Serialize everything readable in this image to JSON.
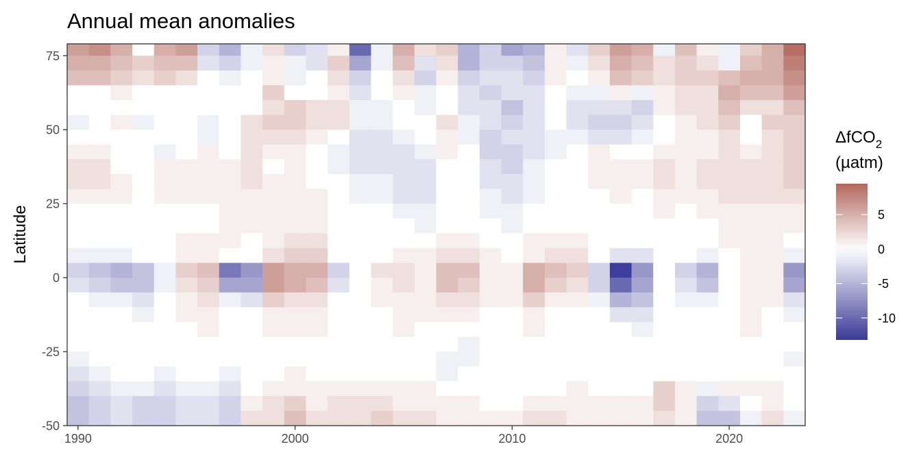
{
  "chart_data": {
    "type": "heatmap",
    "title": "Annual mean anomalies",
    "xlabel": "",
    "ylabel": "Latitude",
    "x_ticks": [
      1990,
      2000,
      2010,
      2020
    ],
    "y_ticks": [
      75,
      50,
      25,
      0,
      -25,
      -50
    ],
    "y_tick_labels": [
      "75",
      "50",
      "25",
      "0",
      "-25",
      "-50"
    ],
    "xlim": [
      1989.5,
      2023.5
    ],
    "ylim": [
      -50,
      79
    ],
    "years": [
      1990,
      1991,
      1992,
      1993,
      1994,
      1995,
      1996,
      1997,
      1998,
      1999,
      2000,
      2001,
      2002,
      2003,
      2004,
      2005,
      2006,
      2007,
      2008,
      2009,
      2010,
      2011,
      2012,
      2013,
      2014,
      2015,
      2016,
      2017,
      2018,
      2019,
      2020,
      2021,
      2022,
      2023
    ],
    "lat_bands": [
      77.5,
      72.5,
      67.5,
      62.5,
      57.5,
      52.5,
      47.5,
      42.5,
      37.5,
      32.5,
      27.5,
      22.5,
      17.5,
      12.5,
      7.5,
      2.5,
      -2.5,
      -7.5,
      -12.5,
      -17.5,
      -22.5,
      -27.5,
      -32.5,
      -37.5,
      -42.5,
      -47.5
    ],
    "values": [
      [
        6,
        7,
        5,
        0,
        5,
        6,
        -3,
        -5,
        -1,
        2,
        -3,
        -2,
        1,
        -10,
        -1,
        5,
        2,
        3,
        -5,
        -3,
        -6,
        -5,
        1,
        -2,
        3,
        6,
        5,
        -1,
        4,
        1,
        -1,
        3,
        5,
        9
      ],
      [
        5,
        5,
        4,
        3,
        4,
        4,
        -2,
        -3,
        -1,
        1,
        -1,
        -2,
        3,
        -6,
        -1,
        4,
        -2,
        2,
        -5,
        -3,
        -3,
        -4,
        1,
        -1,
        2,
        5,
        4,
        2,
        3,
        2,
        -1,
        4,
        5,
        8
      ],
      [
        4,
        4,
        3,
        2,
        3,
        2,
        0,
        -1,
        0,
        1,
        -1,
        0,
        2,
        -3,
        0,
        2,
        -3,
        1,
        -3,
        -2,
        -2,
        -3,
        1,
        0,
        1,
        4,
        3,
        2,
        3,
        3,
        4,
        5,
        5,
        7
      ],
      [
        0,
        0,
        1,
        0,
        0,
        0,
        0,
        0,
        0,
        3,
        0,
        0,
        1,
        -2,
        0,
        1,
        -1,
        0,
        -2,
        -3,
        -2,
        -2,
        0,
        -1,
        -1,
        1,
        -1,
        1,
        2,
        2,
        5,
        4,
        4,
        6
      ],
      [
        0,
        0,
        0,
        0,
        0,
        0,
        0,
        0,
        0,
        2,
        3,
        2,
        2,
        -1,
        -1,
        0,
        -1,
        0,
        -2,
        -2,
        -4,
        -2,
        0,
        -2,
        -2,
        -2,
        -3,
        1,
        2,
        2,
        4,
        2,
        2,
        4
      ],
      [
        -1,
        0,
        1,
        -1,
        0,
        0,
        -1,
        0,
        2,
        3,
        3,
        2,
        2,
        -1,
        -1,
        0,
        0,
        2,
        -1,
        -2,
        -3,
        -2,
        0,
        -2,
        -3,
        -3,
        -2,
        0,
        1,
        2,
        3,
        0,
        3,
        3
      ],
      [
        0,
        0,
        0,
        0,
        0,
        0,
        -1,
        0,
        2,
        2,
        2,
        1,
        0,
        -2,
        -2,
        -1,
        0,
        1,
        -1,
        -3,
        -2,
        -2,
        -1,
        -1,
        -2,
        -2,
        -1,
        0,
        1,
        1,
        2,
        0,
        2,
        3
      ],
      [
        1,
        1,
        0,
        0,
        -1,
        0,
        1,
        0,
        2,
        1,
        1,
        0,
        -1,
        -2,
        -2,
        -2,
        -1,
        1,
        0,
        -3,
        -3,
        -2,
        -1,
        0,
        1,
        0,
        0,
        1,
        1,
        1,
        2,
        1,
        2,
        3
      ],
      [
        2,
        2,
        0,
        0,
        1,
        1,
        1,
        1,
        2,
        0,
        1,
        0,
        -1,
        -2,
        -2,
        -2,
        -2,
        0,
        0,
        -2,
        -3,
        -1,
        0,
        0,
        1,
        1,
        1,
        2,
        1,
        2,
        2,
        2,
        2,
        3
      ],
      [
        2,
        2,
        1,
        0,
        1,
        1,
        1,
        1,
        2,
        1,
        1,
        0,
        0,
        -1,
        -1,
        -2,
        -2,
        0,
        0,
        -2,
        -2,
        -1,
        0,
        0,
        1,
        1,
        1,
        2,
        1,
        2,
        2,
        2,
        2,
        3
      ],
      [
        1,
        1,
        1,
        0,
        1,
        1,
        1,
        1,
        1,
        1,
        1,
        1,
        0,
        -1,
        -1,
        -2,
        -2,
        0,
        0,
        -1,
        -2,
        -1,
        0,
        0,
        0,
        1,
        0,
        1,
        1,
        1,
        2,
        2,
        2,
        2
      ],
      [
        0,
        0,
        0,
        0,
        0,
        0,
        0,
        1,
        1,
        1,
        1,
        1,
        0,
        0,
        0,
        -1,
        -1,
        0,
        0,
        -1,
        -1,
        0,
        0,
        0,
        0,
        0,
        0,
        1,
        0,
        1,
        1,
        1,
        1,
        1
      ],
      [
        0,
        0,
        0,
        0,
        0,
        0,
        0,
        1,
        1,
        1,
        1,
        1,
        0,
        0,
        0,
        0,
        -1,
        0,
        0,
        0,
        -1,
        0,
        0,
        0,
        0,
        0,
        0,
        0,
        0,
        0,
        1,
        1,
        1,
        1
      ],
      [
        0,
        0,
        0,
        0,
        0,
        1,
        1,
        1,
        0,
        1,
        2,
        2,
        0,
        0,
        0,
        0,
        0,
        1,
        1,
        0,
        0,
        1,
        1,
        1,
        0,
        0,
        0,
        0,
        0,
        0,
        1,
        1,
        1,
        0
      ],
      [
        -1,
        -1,
        -1,
        0,
        0,
        1,
        1,
        0,
        0,
        2,
        3,
        3,
        0,
        0,
        0,
        1,
        1,
        2,
        2,
        1,
        0,
        1,
        2,
        2,
        0,
        -2,
        -2,
        0,
        0,
        -1,
        0,
        1,
        1,
        -1
      ],
      [
        -3,
        -4,
        -5,
        -4,
        -1,
        3,
        4,
        -9,
        -7,
        6,
        5,
        5,
        -3,
        0,
        2,
        2,
        1,
        4,
        4,
        1,
        1,
        5,
        4,
        3,
        -3,
        -13,
        -7,
        0,
        -3,
        -5,
        0,
        1,
        1,
        -7
      ],
      [
        -2,
        -3,
        -4,
        -4,
        -1,
        2,
        3,
        -6,
        -6,
        6,
        5,
        4,
        -2,
        0,
        1,
        2,
        1,
        4,
        3,
        1,
        1,
        5,
        3,
        2,
        -3,
        -10,
        -6,
        0,
        -2,
        -4,
        0,
        1,
        1,
        -6
      ],
      [
        0,
        -1,
        -1,
        -2,
        0,
        1,
        2,
        -1,
        -2,
        3,
        2,
        2,
        0,
        0,
        1,
        1,
        1,
        2,
        2,
        1,
        1,
        3,
        1,
        1,
        -1,
        -5,
        -4,
        0,
        -1,
        -1,
        0,
        1,
        1,
        -2
      ],
      [
        0,
        0,
        0,
        -1,
        0,
        1,
        1,
        0,
        0,
        1,
        1,
        1,
        0,
        0,
        0,
        1,
        1,
        1,
        1,
        0,
        0,
        1,
        0,
        0,
        0,
        -2,
        -2,
        0,
        0,
        0,
        0,
        1,
        0,
        -1
      ],
      [
        0,
        0,
        0,
        0,
        0,
        0,
        1,
        0,
        0,
        1,
        1,
        1,
        0,
        0,
        0,
        1,
        0,
        0,
        0,
        0,
        0,
        1,
        0,
        0,
        0,
        0,
        -1,
        0,
        0,
        0,
        0,
        1,
        0,
        0
      ],
      [
        0,
        0,
        0,
        0,
        0,
        0,
        0,
        0,
        0,
        0,
        0,
        0,
        0,
        0,
        0,
        0,
        0,
        0,
        -1,
        0,
        0,
        0,
        0,
        0,
        0,
        0,
        0,
        0,
        0,
        0,
        0,
        0,
        0,
        0
      ],
      [
        -1,
        0,
        0,
        0,
        0,
        0,
        0,
        0,
        0,
        0,
        0,
        0,
        0,
        0,
        0,
        0,
        0,
        -1,
        -1,
        0,
        0,
        0,
        0,
        0,
        0,
        0,
        0,
        0,
        0,
        0,
        0,
        0,
        0,
        -1
      ],
      [
        -2,
        -1,
        0,
        0,
        -1,
        0,
        0,
        -1,
        0,
        0,
        1,
        0,
        0,
        0,
        0,
        0,
        0,
        -1,
        0,
        0,
        0,
        0,
        0,
        0,
        0,
        0,
        0,
        0,
        0,
        0,
        0,
        0,
        0,
        0
      ],
      [
        -3,
        -2,
        -1,
        -1,
        -2,
        -1,
        -1,
        -2,
        0,
        1,
        1,
        1,
        1,
        1,
        1,
        1,
        1,
        0,
        0,
        0,
        0,
        0,
        0,
        1,
        0,
        0,
        0,
        3,
        1,
        -1,
        1,
        1,
        1,
        0
      ],
      [
        -4,
        -3,
        -2,
        -3,
        -3,
        -2,
        -2,
        -3,
        1,
        2,
        3,
        1,
        2,
        2,
        2,
        1,
        1,
        1,
        1,
        0,
        0,
        1,
        1,
        1,
        1,
        1,
        1,
        3,
        1,
        -3,
        -2,
        0,
        1,
        0
      ],
      [
        -4,
        -3,
        -2,
        -3,
        -3,
        -2,
        -2,
        -3,
        2,
        2,
        4,
        2,
        2,
        2,
        3,
        2,
        2,
        1,
        1,
        1,
        1,
        2,
        2,
        1,
        1,
        1,
        1,
        2,
        1,
        -4,
        -4,
        -1,
        2,
        -1
      ]
    ],
    "legend": {
      "title_prefix": "ΔfCO",
      "title_subscript": "2",
      "title_line2": "(µatm)",
      "ticks": [
        5,
        0,
        -5,
        -10
      ],
      "tick_labels": [
        "5",
        "0",
        "-5",
        "-10"
      ],
      "range": [
        -13.2,
        9.5
      ],
      "colors": {
        "high": "#b2675e",
        "mid": "#ffffff",
        "low": "#3a3a98"
      },
      "placement": "right"
    },
    "grid": false
  }
}
